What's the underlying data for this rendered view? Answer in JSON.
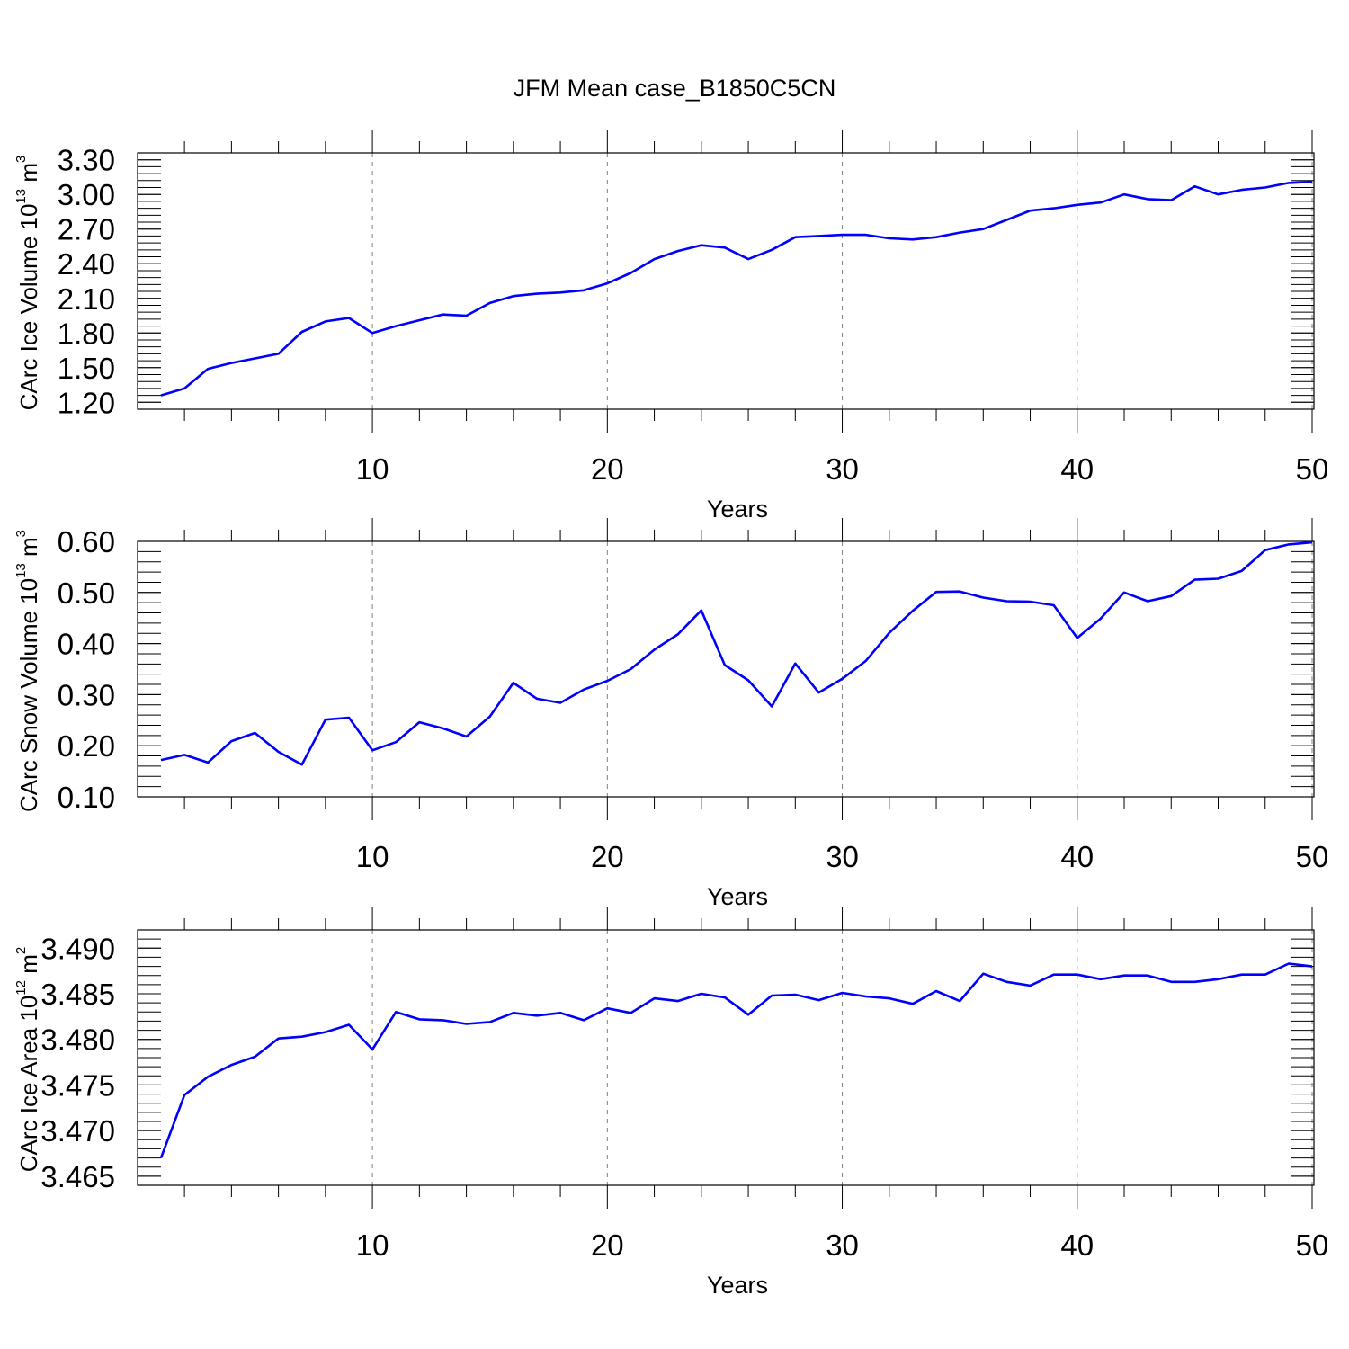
{
  "title": "JFM Mean case_B1850C5CN",
  "colors": {
    "line": "#0000ff",
    "grid": "#808080",
    "frame": "#000000"
  },
  "chart_data": [
    {
      "type": "line",
      "xlabel": "Years",
      "ylabel_main": "CArc Ice Volume 10",
      "ylabel_exp": "13",
      "ylabel_unit": " m",
      "ylabel_unit_exp": "3",
      "xlim": [
        1,
        50
      ],
      "ylim": [
        1.14,
        3.36
      ],
      "xticks": [
        "10",
        "20",
        "30",
        "40",
        "50"
      ],
      "yticks": [
        "1.20",
        "1.50",
        "1.80",
        "2.10",
        "2.40",
        "2.70",
        "3.00",
        "3.30"
      ],
      "x": [
        1,
        2,
        3,
        4,
        5,
        6,
        7,
        8,
        9,
        10,
        11,
        12,
        13,
        14,
        15,
        16,
        17,
        18,
        19,
        20,
        21,
        22,
        23,
        24,
        25,
        26,
        27,
        28,
        29,
        30,
        31,
        32,
        33,
        34,
        35,
        36,
        37,
        38,
        39,
        40,
        41,
        42,
        43,
        44,
        45,
        46,
        47,
        48,
        49,
        50
      ],
      "y": [
        1.26,
        1.32,
        1.49,
        1.54,
        1.58,
        1.62,
        1.81,
        1.9,
        1.93,
        1.8,
        1.86,
        1.91,
        1.96,
        1.95,
        2.06,
        2.12,
        2.14,
        2.15,
        2.17,
        2.23,
        2.32,
        2.44,
        2.51,
        2.56,
        2.54,
        2.44,
        2.52,
        2.63,
        2.64,
        2.65,
        2.65,
        2.62,
        2.61,
        2.63,
        2.67,
        2.7,
        2.78,
        2.86,
        2.88,
        2.91,
        2.93,
        3.0,
        2.96,
        2.95,
        3.07,
        3.0,
        3.04,
        3.06,
        3.1,
        3.11
      ]
    },
    {
      "type": "line",
      "xlabel": "Years",
      "ylabel_main": "CArc Snow Volume 10",
      "ylabel_exp": "13",
      "ylabel_unit": " m",
      "ylabel_unit_exp": "3",
      "xlim": [
        1,
        50
      ],
      "ylim": [
        0.1,
        0.6
      ],
      "xticks": [
        "10",
        "20",
        "30",
        "40",
        "50"
      ],
      "yticks": [
        "0.10",
        "0.20",
        "0.30",
        "0.40",
        "0.50",
        "0.60"
      ],
      "x": [
        1,
        2,
        3,
        4,
        5,
        6,
        7,
        8,
        9,
        10,
        11,
        12,
        13,
        14,
        15,
        16,
        17,
        18,
        19,
        20,
        21,
        22,
        23,
        24,
        25,
        26,
        27,
        28,
        29,
        30,
        31,
        32,
        33,
        34,
        35,
        36,
        37,
        38,
        39,
        40,
        41,
        42,
        43,
        44,
        45,
        46,
        47,
        48,
        49,
        50
      ],
      "y": [
        0.172,
        0.182,
        0.167,
        0.209,
        0.225,
        0.188,
        0.163,
        0.251,
        0.255,
        0.191,
        0.207,
        0.246,
        0.234,
        0.218,
        0.257,
        0.323,
        0.292,
        0.284,
        0.31,
        0.327,
        0.35,
        0.388,
        0.418,
        0.465,
        0.358,
        0.328,
        0.277,
        0.361,
        0.304,
        0.331,
        0.366,
        0.421,
        0.464,
        0.501,
        0.502,
        0.49,
        0.483,
        0.482,
        0.475,
        0.411,
        0.449,
        0.5,
        0.483,
        0.493,
        0.525,
        0.527,
        0.542,
        0.583,
        0.594,
        0.598
      ]
    },
    {
      "type": "line",
      "xlabel": "Years",
      "ylabel_main": "CArc Ice Area 10",
      "ylabel_exp": "12",
      "ylabel_unit": " m",
      "ylabel_unit_exp": "2",
      "xlim": [
        1,
        50
      ],
      "ylim": [
        3.464,
        3.492
      ],
      "xticks": [
        "10",
        "20",
        "30",
        "40",
        "50"
      ],
      "yticks": [
        "3.465",
        "3.470",
        "3.475",
        "3.480",
        "3.485",
        "3.490"
      ],
      "x": [
        1,
        2,
        3,
        4,
        5,
        6,
        7,
        8,
        9,
        10,
        11,
        12,
        13,
        14,
        15,
        16,
        17,
        18,
        19,
        20,
        21,
        22,
        23,
        24,
        25,
        26,
        27,
        28,
        29,
        30,
        31,
        32,
        33,
        34,
        35,
        36,
        37,
        38,
        39,
        40,
        41,
        42,
        43,
        44,
        45,
        46,
        47,
        48,
        49,
        50
      ],
      "y": [
        3.467,
        3.4739,
        3.4759,
        3.4772,
        3.4781,
        3.4801,
        3.4803,
        3.4808,
        3.4816,
        3.4789,
        3.483,
        3.4822,
        3.4821,
        3.4817,
        3.4819,
        3.4829,
        3.4826,
        3.4829,
        3.4821,
        3.4834,
        3.4829,
        3.4845,
        3.4842,
        3.485,
        3.4846,
        3.4827,
        3.4848,
        3.4849,
        3.4843,
        3.4851,
        3.4847,
        3.4845,
        3.4839,
        3.4853,
        3.4842,
        3.4872,
        3.4863,
        3.4859,
        3.4871,
        3.4871,
        3.4866,
        3.487,
        3.487,
        3.4863,
        3.4863,
        3.4866,
        3.4871,
        3.4871,
        3.4883,
        3.488
      ]
    }
  ]
}
